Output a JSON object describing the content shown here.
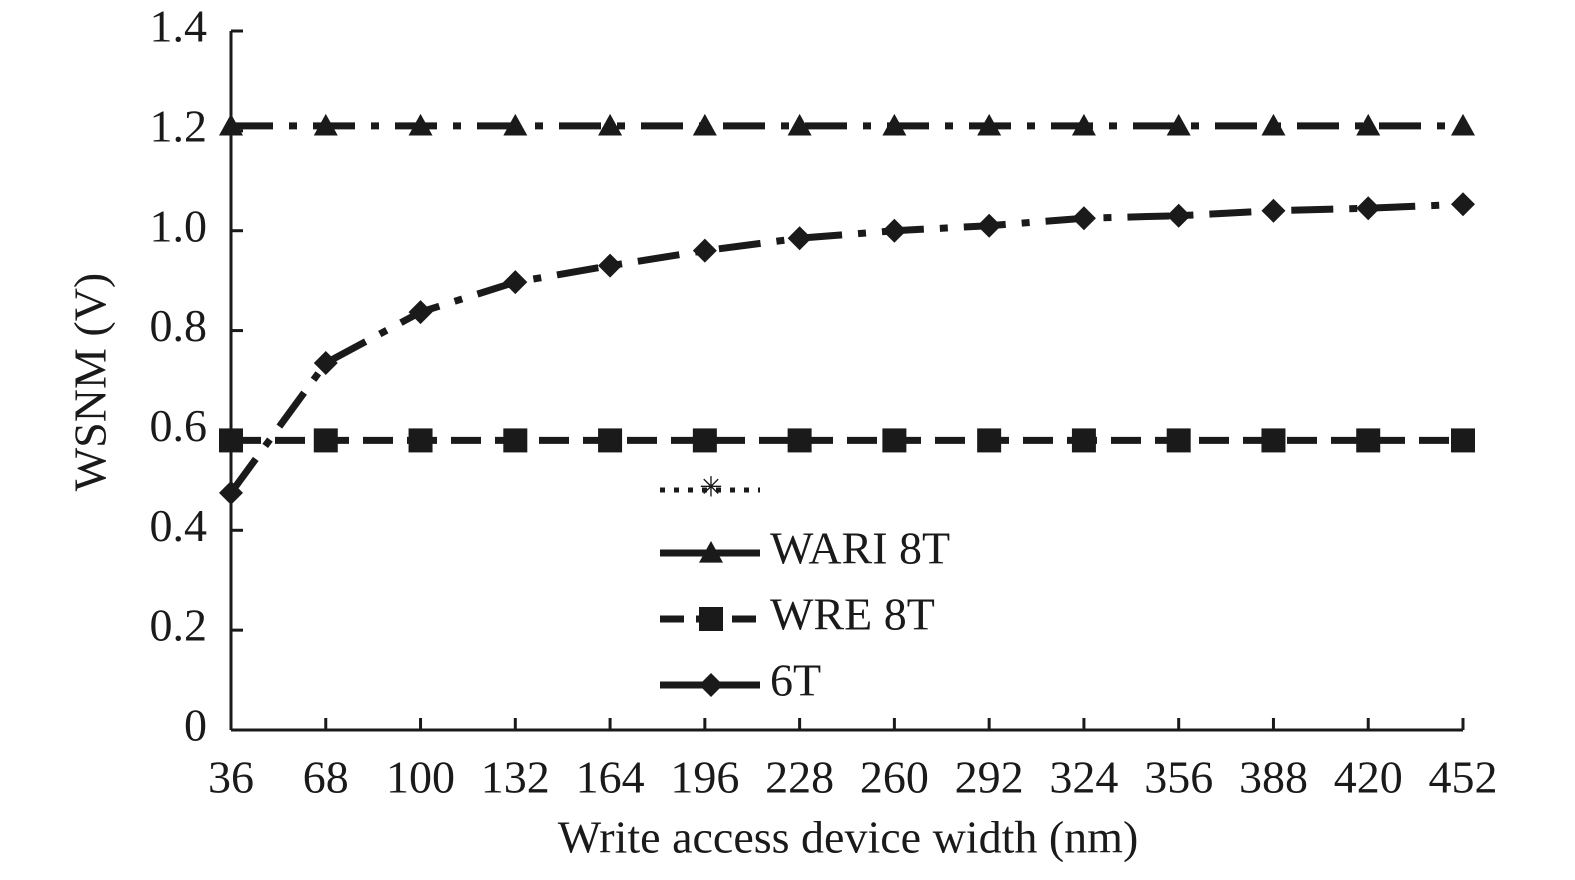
{
  "chart_data": {
    "type": "line",
    "x_label": "Write access device width (nm)",
    "y_label": "WSNM (V)",
    "x": [
      36,
      68,
      100,
      132,
      164,
      196,
      228,
      260,
      292,
      324,
      356,
      388,
      420,
      452
    ],
    "xlim": [
      36,
      452
    ],
    "xticks": [
      36,
      68,
      100,
      132,
      164,
      196,
      228,
      260,
      292,
      324,
      356,
      388,
      420,
      452
    ],
    "ylim": [
      0,
      1.4
    ],
    "yticks": [
      0,
      0.2,
      0.4,
      0.6,
      0.8,
      {
        "value": 1,
        "label": "1.0"
      },
      1.2,
      1.4
    ],
    "series": [
      {
        "name": "WARI 8T",
        "color": "#1a1a1a",
        "marker": "triangle",
        "dash": "dashdot",
        "values": [
          1.21,
          1.21,
          1.21,
          1.21,
          1.21,
          1.21,
          1.21,
          1.21,
          1.21,
          1.21,
          1.21,
          1.21,
          1.21,
          1.21
        ]
      },
      {
        "name": "WRE 8T",
        "color": "#1a1a1a",
        "marker": "square",
        "dash": "dashed",
        "values": [
          0.58,
          0.58,
          0.58,
          0.58,
          0.58,
          0.58,
          0.58,
          0.58,
          0.58,
          0.58,
          0.58,
          0.58,
          0.58,
          0.58
        ]
      },
      {
        "name": "6T",
        "color": "#1a1a1a",
        "marker": "diamond",
        "dash": "dashdot",
        "values": [
          0.475,
          0.735,
          0.837,
          0.897,
          0.93,
          0.96,
          0.985,
          1.0,
          1.01,
          1.025,
          1.03,
          1.04,
          1.045,
          1.053
        ]
      }
    ]
  }
}
